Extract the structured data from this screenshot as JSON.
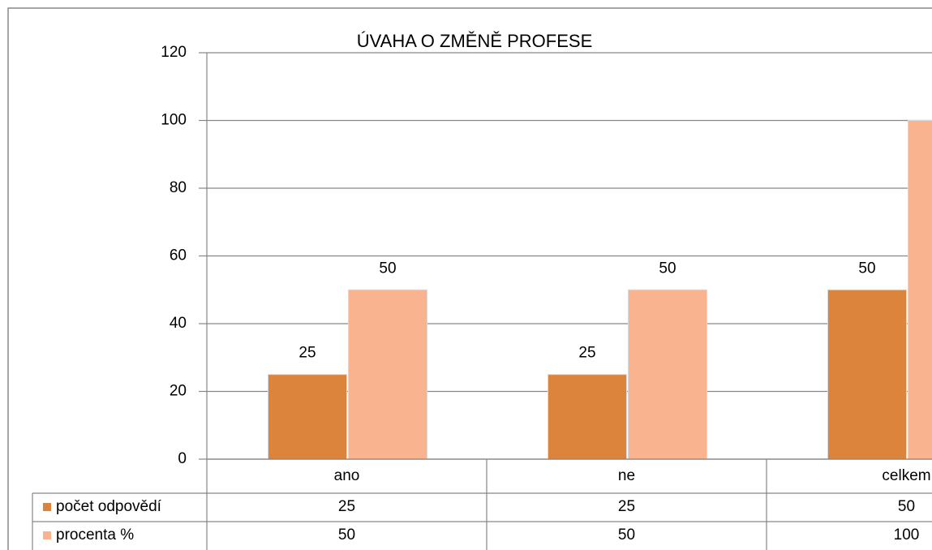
{
  "chart_data": {
    "type": "bar",
    "title": "ÚVAHA O ZMĚNĚ PROFESE",
    "categories": [
      "ano",
      "ne",
      "celkem"
    ],
    "series": [
      {
        "name": "počet odpovědí",
        "color": "#dc843b",
        "values": [
          25,
          25,
          50
        ]
      },
      {
        "name": "procenta %",
        "color": "#f9b48f",
        "values": [
          50,
          50,
          100
        ]
      }
    ],
    "ylim": [
      0,
      120
    ],
    "yticks": [
      0,
      20,
      40,
      60,
      80,
      100,
      120
    ],
    "grid": true,
    "data_table": true
  }
}
